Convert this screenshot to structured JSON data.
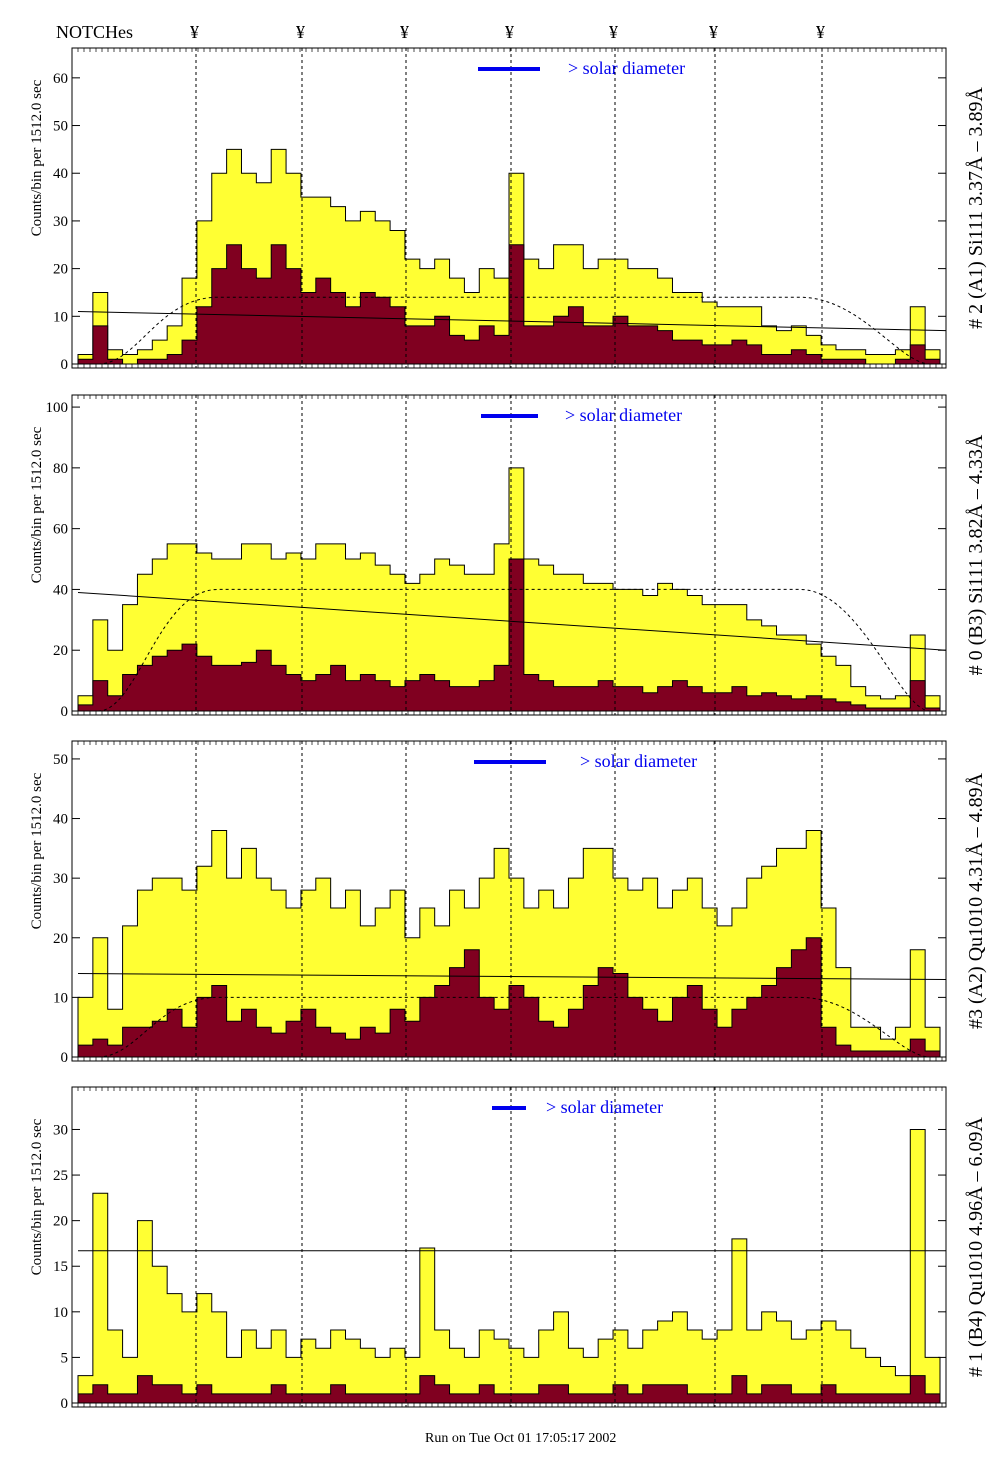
{
  "header": {
    "notches_label": "NOTCHes",
    "notch_symbol": "¥",
    "notch_count": 7
  },
  "footer": {
    "run_text": "Run on Tue Oct 01 17:05:17 2002"
  },
  "colors": {
    "spectrum": "#ffff33",
    "dark": "#800020",
    "solar": "#0000ee",
    "text_blue": "#0000ee"
  },
  "chart_data": [
    {
      "type": "bar",
      "title": "# 2 (A1) Si111  3.37Å – 3.89Å",
      "ylabel": "Counts/bin per   1512.0 sec",
      "solar_label": "> solar diameter",
      "ylim": [
        0,
        65
      ],
      "yticks": [
        0,
        10,
        20,
        30,
        40,
        50,
        60
      ],
      "baseline_fit": [
        11,
        7
      ],
      "model_level": 14,
      "values": [
        2,
        15,
        3,
        2,
        3,
        5,
        8,
        18,
        30,
        40,
        45,
        40,
        38,
        45,
        40,
        35,
        35,
        33,
        30,
        32,
        30,
        28,
        22,
        20,
        22,
        18,
        15,
        20,
        18,
        40,
        22,
        20,
        25,
        25,
        20,
        22,
        22,
        20,
        20,
        18,
        15,
        15,
        13,
        12,
        12,
        12,
        8,
        7,
        8,
        6,
        4,
        3,
        3,
        2,
        2,
        3,
        12,
        3
      ],
      "dark_values": [
        1,
        8,
        1,
        0,
        1,
        1,
        2,
        5,
        12,
        20,
        25,
        20,
        18,
        25,
        20,
        15,
        18,
        15,
        12,
        15,
        14,
        12,
        8,
        8,
        10,
        6,
        5,
        8,
        6,
        25,
        8,
        8,
        10,
        12,
        8,
        8,
        10,
        8,
        8,
        7,
        5,
        5,
        4,
        4,
        5,
        4,
        2,
        2,
        3,
        2,
        1,
        1,
        1,
        0,
        0,
        1,
        4,
        1
      ]
    },
    {
      "type": "bar",
      "title": "# 0 (B3) Si111  3.82Å – 4.33Å",
      "ylabel": "Counts/bin per   1512.0 sec",
      "solar_label": "> solar diameter",
      "ylim": [
        0,
        102
      ],
      "yticks": [
        0,
        20,
        40,
        60,
        80,
        100
      ],
      "baseline_fit": [
        39,
        20
      ],
      "model_level": 40,
      "values": [
        5,
        30,
        20,
        35,
        45,
        50,
        55,
        55,
        52,
        50,
        50,
        55,
        55,
        50,
        52,
        50,
        55,
        55,
        50,
        52,
        48,
        45,
        42,
        45,
        50,
        48,
        45,
        45,
        55,
        80,
        50,
        48,
        45,
        45,
        42,
        42,
        40,
        40,
        38,
        42,
        40,
        38,
        35,
        35,
        35,
        30,
        28,
        25,
        25,
        22,
        18,
        15,
        8,
        5,
        4,
        5,
        25,
        5
      ],
      "dark_values": [
        2,
        10,
        5,
        12,
        15,
        18,
        20,
        22,
        18,
        15,
        15,
        16,
        20,
        15,
        12,
        10,
        12,
        15,
        10,
        12,
        10,
        8,
        10,
        12,
        10,
        8,
        8,
        10,
        15,
        50,
        12,
        10,
        8,
        8,
        8,
        10,
        8,
        8,
        6,
        8,
        10,
        8,
        6,
        6,
        8,
        5,
        6,
        5,
        4,
        5,
        4,
        3,
        2,
        1,
        1,
        1,
        10,
        1
      ]
    },
    {
      "type": "bar",
      "title": "#3 (A2) Qu1010  4.31Å – 4.89Å",
      "ylabel": "Counts/bin per   1512.0 sec",
      "solar_label": "> solar diameter",
      "ylim": [
        0,
        52
      ],
      "yticks": [
        0,
        10,
        20,
        30,
        40,
        50
      ],
      "baseline_fit": [
        14,
        13
      ],
      "model_level": 10,
      "values": [
        10,
        20,
        8,
        22,
        28,
        30,
        30,
        28,
        32,
        38,
        30,
        35,
        30,
        28,
        25,
        28,
        30,
        25,
        28,
        22,
        25,
        28,
        20,
        25,
        22,
        28,
        25,
        30,
        35,
        30,
        25,
        28,
        25,
        30,
        35,
        35,
        30,
        28,
        30,
        25,
        28,
        30,
        25,
        22,
        25,
        30,
        32,
        35,
        35,
        38,
        25,
        15,
        5,
        5,
        3,
        5,
        18,
        5
      ],
      "dark_values": [
        2,
        3,
        2,
        5,
        5,
        6,
        8,
        5,
        10,
        12,
        6,
        8,
        5,
        4,
        6,
        8,
        5,
        4,
        3,
        5,
        4,
        8,
        6,
        10,
        12,
        15,
        18,
        10,
        8,
        12,
        10,
        6,
        5,
        8,
        12,
        15,
        14,
        10,
        8,
        6,
        10,
        12,
        8,
        5,
        8,
        10,
        12,
        15,
        18,
        20,
        5,
        2,
        1,
        1,
        1,
        1,
        3,
        1
      ]
    },
    {
      "type": "bar",
      "title": "# 1 (B4) Qu1010 4.96Å – 6.09Å",
      "ylabel": "Counts/bin per   1512.0 sec",
      "solar_label": "> solar diameter",
      "ylim": [
        0,
        34
      ],
      "yticks": [
        0,
        5,
        10,
        15,
        20,
        25,
        30
      ],
      "baseline_fit": [
        16.7,
        16.7
      ],
      "model_level": null,
      "values": [
        3,
        23,
        8,
        5,
        20,
        15,
        12,
        10,
        12,
        10,
        5,
        8,
        6,
        8,
        5,
        7,
        6,
        8,
        7,
        6,
        5,
        6,
        5,
        17,
        8,
        6,
        5,
        8,
        7,
        6,
        5,
        8,
        10,
        6,
        5,
        7,
        8,
        6,
        8,
        9,
        10,
        8,
        7,
        8,
        18,
        8,
        10,
        9,
        7,
        8,
        9,
        8,
        6,
        5,
        4,
        3,
        30,
        5
      ],
      "dark_values": [
        1,
        2,
        1,
        1,
        3,
        2,
        2,
        1,
        2,
        1,
        1,
        1,
        1,
        2,
        1,
        1,
        1,
        2,
        1,
        1,
        1,
        1,
        1,
        3,
        2,
        1,
        1,
        2,
        1,
        1,
        1,
        2,
        2,
        1,
        1,
        1,
        2,
        1,
        2,
        2,
        2,
        1,
        1,
        1,
        3,
        1,
        2,
        2,
        1,
        1,
        2,
        1,
        1,
        1,
        1,
        1,
        3,
        1
      ]
    }
  ]
}
